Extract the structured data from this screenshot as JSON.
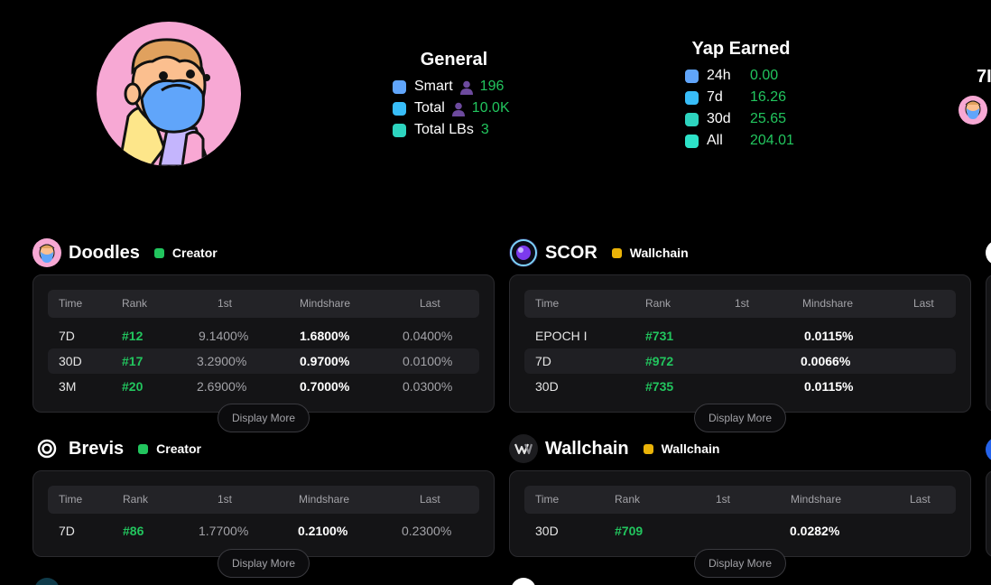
{
  "profile": {
    "avatar_icon": "bearded-cartoon-avatar-icon"
  },
  "general": {
    "title": "General",
    "rows": [
      {
        "label": "Smart",
        "value": "196",
        "color": "#60a5fa",
        "icon": "person-icon"
      },
      {
        "label": "Total",
        "value": "10.0K",
        "color": "#38bdf8",
        "icon": "person-icon"
      },
      {
        "label": "Total LBs",
        "value": "3",
        "color": "#2dd4bf"
      }
    ]
  },
  "yap": {
    "title": "Yap Earned",
    "rows": [
      {
        "label": "24h",
        "value": "0.00",
        "color": "#60a5fa"
      },
      {
        "label": "7d",
        "value": "16.26",
        "color": "#38bdf8"
      },
      {
        "label": "30d",
        "value": "25.65",
        "color": "#2dd4bf"
      },
      {
        "label": "All",
        "value": "204.01",
        "color": "#2de2c8"
      }
    ]
  },
  "cutoff": {
    "label": "7I"
  },
  "columns": [
    "Time",
    "Rank",
    "1st",
    "Mindshare",
    "Last"
  ],
  "display_more": "Display More",
  "projects": [
    {
      "name": "Doodles",
      "badge": "Creator",
      "badge_color": "#22c55e",
      "logo_icon": "doodles-avatar-icon",
      "rows": [
        {
          "time": "7D",
          "rank": "#12",
          "first": "9.1400%",
          "mindshare": "1.6800%",
          "last": "0.0400%"
        },
        {
          "time": "30D",
          "rank": "#17",
          "first": "3.2900%",
          "mindshare": "0.9700%",
          "last": "0.0100%"
        },
        {
          "time": "3M",
          "rank": "#20",
          "first": "2.6900%",
          "mindshare": "0.7000%",
          "last": "0.0300%"
        }
      ]
    },
    {
      "name": "SCOR",
      "badge": "Wallchain",
      "badge_color": "#eab308",
      "logo_icon": "scor-orb-icon",
      "rows": [
        {
          "time": "EPOCH I",
          "rank": "#731",
          "first": "",
          "mindshare": "0.0115%",
          "last": ""
        },
        {
          "time": "7D",
          "rank": "#972",
          "first": "",
          "mindshare": "0.0066%",
          "last": ""
        },
        {
          "time": "30D",
          "rank": "#735",
          "first": "",
          "mindshare": "0.0115%",
          "last": ""
        }
      ]
    },
    {
      "name": "Brevis",
      "badge": "Creator",
      "badge_color": "#22c55e",
      "logo_icon": "brevis-ring-icon",
      "rows": [
        {
          "time": "7D",
          "rank": "#86",
          "first": "1.7700%",
          "mindshare": "0.2100%",
          "last": "0.2300%"
        }
      ]
    },
    {
      "name": "Wallchain",
      "badge": "Wallchain",
      "badge_color": "#eab308",
      "logo_icon": "wallchain-w-icon",
      "rows": [
        {
          "time": "30D",
          "rank": "#709",
          "first": "",
          "mindshare": "0.0282%",
          "last": ""
        }
      ]
    }
  ]
}
